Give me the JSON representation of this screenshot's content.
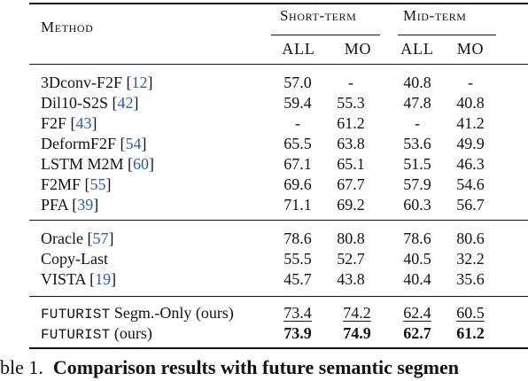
{
  "header": {
    "method": "Method",
    "short_term": "Short-term",
    "mid_term": "Mid-term",
    "all": "ALL",
    "mo": "MO"
  },
  "groups": [
    {
      "rows": [
        {
          "name": "3Dconv-F2F",
          "ref": "12",
          "values": [
            "57.0",
            "-",
            "40.8",
            "-"
          ]
        },
        {
          "name": "Dil10-S2S",
          "ref": "42",
          "values": [
            "59.4",
            "55.3",
            "47.8",
            "40.8"
          ]
        },
        {
          "name": "F2F",
          "ref": "43",
          "values": [
            "-",
            "61.2",
            "-",
            "41.2"
          ]
        },
        {
          "name": "DeformF2F",
          "ref": "54",
          "values": [
            "65.5",
            "63.8",
            "53.6",
            "49.9"
          ]
        },
        {
          "name": "LSTM M2M",
          "ref": "60",
          "values": [
            "67.1",
            "65.1",
            "51.5",
            "46.3"
          ]
        },
        {
          "name": "F2MF",
          "ref": "55",
          "values": [
            "69.6",
            "67.7",
            "57.9",
            "54.6"
          ]
        },
        {
          "name": "PFA",
          "ref": "39",
          "values": [
            "71.1",
            "69.2",
            "60.3",
            "56.7"
          ]
        }
      ]
    },
    {
      "rows": [
        {
          "name": "Oracle",
          "ref": "57",
          "values": [
            "78.6",
            "80.8",
            "78.6",
            "80.6"
          ]
        },
        {
          "name": "Copy-Last",
          "ref": "",
          "values": [
            "55.5",
            "52.7",
            "40.5",
            "32.2"
          ]
        },
        {
          "name": "VISTA",
          "ref": "19",
          "values": [
            "45.7",
            "43.8",
            "40.4",
            "35.6"
          ]
        }
      ]
    },
    {
      "rows": [
        {
          "name_mono": "FUTURIST",
          "name_rest": " Segm.-Only (ours)",
          "values": [
            "73.4",
            "74.2",
            "62.4",
            "60.5"
          ],
          "style": "underline"
        },
        {
          "name_mono": "FUTURIST",
          "name_rest": " (ours)",
          "values": [
            "73.9",
            "74.9",
            "62.7",
            "61.2"
          ],
          "style": "bold"
        }
      ]
    }
  ],
  "caption": {
    "prefix": "ble 1.",
    "bold": "Comparison results with future semantic segmen"
  }
}
